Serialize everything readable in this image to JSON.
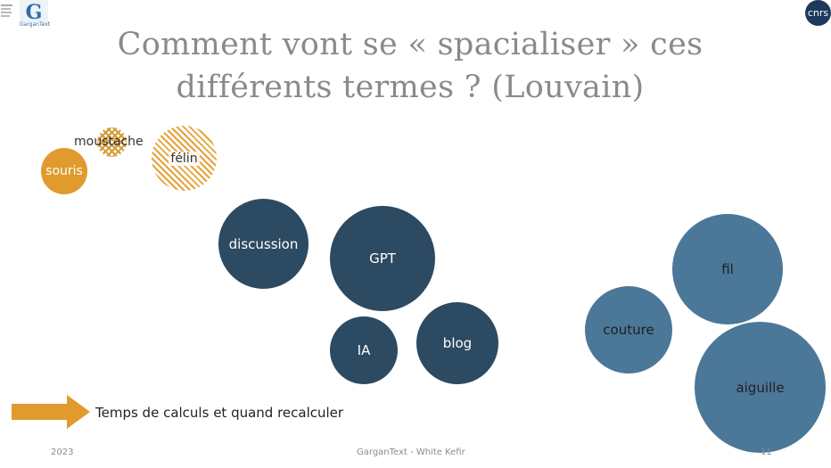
{
  "header": {
    "logo_left_text": "GarganText",
    "logo_right_text": "cnrs"
  },
  "slide": {
    "title_line1": "Comment vont se « spacialiser » ces",
    "title_line2": "différents termes ? (Louvain)"
  },
  "bubbles": {
    "souris": "souris",
    "moustache": "moustache",
    "felin": "félin",
    "discussion": "discussion",
    "gpt": "GPT",
    "ia": "IA",
    "blog": "blog",
    "fil": "fil",
    "couture": "couture",
    "aiguille": "aiguille"
  },
  "note": {
    "text": "Temps de calculs et quand recalculer"
  },
  "footer": {
    "year": "2023",
    "center": "GarganText - White Kefir",
    "page": "11"
  },
  "colors": {
    "dark_blue": "#2c4a62",
    "mid_blue": "#4b7799",
    "orange": "#e09a2e"
  }
}
